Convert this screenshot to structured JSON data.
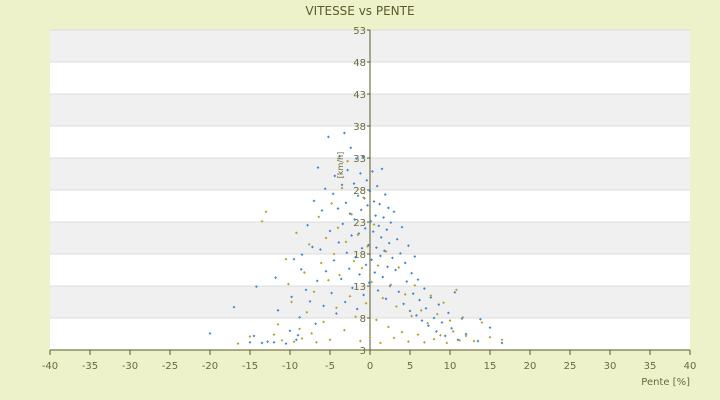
{
  "chart_data": {
    "type": "scatter",
    "title": "VITESSE vs PENTE",
    "xlabel": "Pente [%]",
    "ylabel": "[km/h]",
    "xlim": [
      -40,
      40
    ],
    "ylim": [
      3,
      53
    ],
    "xticks": [
      -40,
      -35,
      -30,
      -25,
      -20,
      -15,
      -10,
      -5,
      0,
      5,
      10,
      15,
      20,
      25,
      30,
      35,
      40
    ],
    "yticks": [
      3,
      8,
      13,
      18,
      23,
      28,
      33,
      38,
      43,
      48,
      53
    ],
    "grid": true,
    "legend": "none",
    "colors": {
      "blue": "#3a86d6",
      "olive": "#b3a12a",
      "banding": "#f0f0f0",
      "axis": "#5a5a2a"
    },
    "series": [
      {
        "color": "#3a86d6",
        "points": [
          [
            -20.0,
            5.6
          ],
          [
            -17.0,
            9.7
          ],
          [
            -15.0,
            4.2
          ],
          [
            -14.5,
            5.2
          ],
          [
            -14.2,
            12.9
          ],
          [
            -13.5,
            4.1
          ],
          [
            -12.8,
            4.3
          ],
          [
            -12.0,
            4.2
          ],
          [
            -11.8,
            14.3
          ],
          [
            -11.5,
            9.2
          ],
          [
            -10.5,
            4.0
          ],
          [
            -10.0,
            6.0
          ],
          [
            -9.8,
            11.3
          ],
          [
            -9.5,
            17.2
          ],
          [
            -9.2,
            4.6
          ],
          [
            -9.0,
            5.3
          ],
          [
            -8.8,
            8.1
          ],
          [
            -8.6,
            15.6
          ],
          [
            -8.5,
            17.9
          ],
          [
            -8.0,
            12.4
          ],
          [
            -7.8,
            22.5
          ],
          [
            -7.5,
            10.6
          ],
          [
            -7.2,
            19.1
          ],
          [
            -7.0,
            26.3
          ],
          [
            -6.8,
            7.1
          ],
          [
            -6.6,
            13.8
          ],
          [
            -6.5,
            31.5
          ],
          [
            -6.2,
            18.7
          ],
          [
            -6.0,
            24.8
          ],
          [
            -5.8,
            9.9
          ],
          [
            -5.6,
            28.2
          ],
          [
            -5.5,
            15.3
          ],
          [
            -5.2,
            36.3
          ],
          [
            -5.0,
            21.6
          ],
          [
            -4.8,
            11.9
          ],
          [
            -4.6,
            27.4
          ],
          [
            -4.5,
            17.0
          ],
          [
            -4.4,
            30.2
          ],
          [
            -4.2,
            8.7
          ],
          [
            -4.0,
            25.1
          ],
          [
            -3.9,
            19.8
          ],
          [
            -3.8,
            33.3
          ],
          [
            -3.6,
            14.1
          ],
          [
            -3.5,
            28.8
          ],
          [
            -3.4,
            22.7
          ],
          [
            -3.2,
            36.9
          ],
          [
            -3.1,
            10.5
          ],
          [
            -3.0,
            26.0
          ],
          [
            -2.9,
            18.2
          ],
          [
            -2.8,
            31.1
          ],
          [
            -2.6,
            15.7
          ],
          [
            -2.5,
            24.3
          ],
          [
            -2.4,
            34.6
          ],
          [
            -2.3,
            20.9
          ],
          [
            -2.2,
            12.7
          ],
          [
            -2.0,
            29.0
          ],
          [
            -1.9,
            23.4
          ],
          [
            -1.8,
            17.5
          ],
          [
            -1.7,
            32.9
          ],
          [
            -1.6,
            9.4
          ],
          [
            -1.5,
            27.1
          ],
          [
            -1.4,
            21.2
          ],
          [
            -1.3,
            14.8
          ],
          [
            -1.2,
            30.6
          ],
          [
            -1.1,
            24.9
          ],
          [
            -1.0,
            18.9
          ],
          [
            -0.9,
            33.2
          ],
          [
            -0.8,
            11.6
          ],
          [
            -0.7,
            26.7
          ],
          [
            -0.6,
            22.0
          ],
          [
            -0.5,
            16.3
          ],
          [
            -0.4,
            29.5
          ],
          [
            -0.3,
            25.6
          ],
          [
            -0.2,
            19.4
          ],
          [
            -0.1,
            13.5
          ],
          [
            0.0,
            27.8
          ],
          [
            0.1,
            23.1
          ],
          [
            0.2,
            17.1
          ],
          [
            0.3,
            30.9
          ],
          [
            0.4,
            21.5
          ],
          [
            0.5,
            26.2
          ],
          [
            0.6,
            15.1
          ],
          [
            0.7,
            24.0
          ],
          [
            0.8,
            19.0
          ],
          [
            0.9,
            28.6
          ],
          [
            1.0,
            12.3
          ],
          [
            1.1,
            22.4
          ],
          [
            1.2,
            25.8
          ],
          [
            1.3,
            17.7
          ],
          [
            1.4,
            20.6
          ],
          [
            1.5,
            31.3
          ],
          [
            1.6,
            14.4
          ],
          [
            1.7,
            23.7
          ],
          [
            1.8,
            18.5
          ],
          [
            1.9,
            27.3
          ],
          [
            2.0,
            11.0
          ],
          [
            2.1,
            21.8
          ],
          [
            2.2,
            16.0
          ],
          [
            2.3,
            25.2
          ],
          [
            2.4,
            19.7
          ],
          [
            2.5,
            13.0
          ],
          [
            2.6,
            22.9
          ],
          [
            2.8,
            17.4
          ],
          [
            3.0,
            24.6
          ],
          [
            3.2,
            15.5
          ],
          [
            3.4,
            20.3
          ],
          [
            3.6,
            12.1
          ],
          [
            3.8,
            18.1
          ],
          [
            4.0,
            22.2
          ],
          [
            4.2,
            10.2
          ],
          [
            4.4,
            16.6
          ],
          [
            4.6,
            13.7
          ],
          [
            4.8,
            19.3
          ],
          [
            5.0,
            9.1
          ],
          [
            5.2,
            15.0
          ],
          [
            5.4,
            11.8
          ],
          [
            5.6,
            17.6
          ],
          [
            5.8,
            8.4
          ],
          [
            6.0,
            14.0
          ],
          [
            6.2,
            10.8
          ],
          [
            6.5,
            7.6
          ],
          [
            6.8,
            12.6
          ],
          [
            7.0,
            9.5
          ],
          [
            7.3,
            6.8
          ],
          [
            7.6,
            11.2
          ],
          [
            8.0,
            8.0
          ],
          [
            8.3,
            5.9
          ],
          [
            8.6,
            10.1
          ],
          [
            9.0,
            7.3
          ],
          [
            9.4,
            5.2
          ],
          [
            9.8,
            8.8
          ],
          [
            10.2,
            6.4
          ],
          [
            10.6,
            12.0
          ],
          [
            11.0,
            4.6
          ],
          [
            11.5,
            7.9
          ],
          [
            12.0,
            5.5
          ],
          [
            13.5,
            4.4
          ],
          [
            13.8,
            7.8
          ],
          [
            15.0,
            6.5
          ],
          [
            16.5,
            4.1
          ]
        ]
      },
      {
        "color": "#b3a12a",
        "points": [
          [
            -16.5,
            4.0
          ],
          [
            -15.0,
            5.1
          ],
          [
            -13.5,
            23.1
          ],
          [
            -13.0,
            24.6
          ],
          [
            -12.0,
            5.4
          ],
          [
            -11.5,
            7.0
          ],
          [
            -11.0,
            4.5
          ],
          [
            -10.5,
            17.2
          ],
          [
            -10.2,
            13.3
          ],
          [
            -9.8,
            10.5
          ],
          [
            -9.5,
            4.3
          ],
          [
            -9.2,
            21.3
          ],
          [
            -8.8,
            6.3
          ],
          [
            -8.5,
            4.8
          ],
          [
            -8.2,
            15.1
          ],
          [
            -7.9,
            8.9
          ],
          [
            -7.6,
            19.5
          ],
          [
            -7.3,
            5.6
          ],
          [
            -7.0,
            12.1
          ],
          [
            -6.7,
            4.2
          ],
          [
            -6.4,
            23.8
          ],
          [
            -6.1,
            16.6
          ],
          [
            -5.8,
            7.4
          ],
          [
            -5.5,
            20.5
          ],
          [
            -5.2,
            13.9
          ],
          [
            -5.0,
            4.6
          ],
          [
            -4.8,
            25.9
          ],
          [
            -4.5,
            18.0
          ],
          [
            -4.2,
            9.6
          ],
          [
            -4.0,
            22.1
          ],
          [
            -3.8,
            14.7
          ],
          [
            -3.5,
            28.3
          ],
          [
            -3.2,
            6.1
          ],
          [
            -3.0,
            19.9
          ],
          [
            -2.8,
            32.5
          ],
          [
            -2.5,
            11.4
          ],
          [
            -2.3,
            24.2
          ],
          [
            -2.0,
            16.9
          ],
          [
            -1.8,
            8.2
          ],
          [
            -1.5,
            21.0
          ],
          [
            -1.2,
            4.4
          ],
          [
            -1.0,
            15.8
          ],
          [
            -0.8,
            26.8
          ],
          [
            -0.5,
            10.3
          ],
          [
            -0.3,
            19.2
          ],
          [
            0.0,
            5.0
          ],
          [
            0.2,
            13.6
          ],
          [
            0.5,
            22.6
          ],
          [
            0.8,
            7.7
          ],
          [
            1.0,
            16.2
          ],
          [
            1.3,
            4.1
          ],
          [
            1.6,
            11.1
          ],
          [
            2.0,
            18.4
          ],
          [
            2.3,
            6.6
          ],
          [
            2.6,
            13.2
          ],
          [
            3.0,
            4.9
          ],
          [
            3.3,
            9.8
          ],
          [
            3.6,
            15.9
          ],
          [
            4.0,
            5.8
          ],
          [
            4.4,
            11.7
          ],
          [
            4.8,
            4.3
          ],
          [
            5.2,
            8.3
          ],
          [
            5.6,
            13.1
          ],
          [
            6.0,
            5.4
          ],
          [
            6.4,
            9.2
          ],
          [
            6.8,
            4.2
          ],
          [
            7.2,
            7.2
          ],
          [
            7.6,
            11.5
          ],
          [
            8.0,
            4.7
          ],
          [
            8.4,
            8.6
          ],
          [
            8.8,
            5.3
          ],
          [
            9.2,
            10.4
          ],
          [
            9.6,
            4.1
          ],
          [
            10.0,
            7.6
          ],
          [
            10.4,
            5.9
          ],
          [
            10.8,
            12.4
          ],
          [
            11.2,
            4.5
          ],
          [
            11.6,
            8.1
          ],
          [
            12.0,
            5.2
          ],
          [
            13.0,
            4.4
          ],
          [
            14.0,
            7.3
          ],
          [
            15.0,
            5.0
          ],
          [
            16.5,
            4.6
          ]
        ]
      }
    ]
  }
}
